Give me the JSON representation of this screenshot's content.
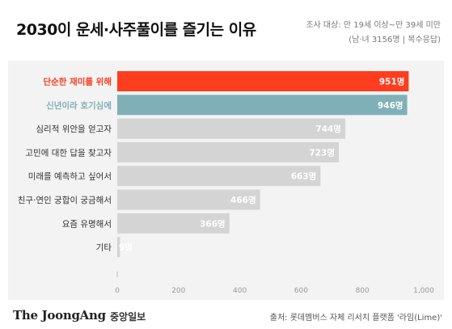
{
  "header": {
    "title": "2030이 운세·사주풀이를 즐기는 이유",
    "note_line1": "조사 대상: 만 19세 이상~만 39세 미만",
    "note_line2": "(남·녀 3156명 | 복수응답)"
  },
  "footer": {
    "logo_en": "The JoongAng",
    "logo_kr": "중앙일보",
    "source": "출처: 롯데멤버스 자체 리서치 플랫폼 '라임(Lime)'"
  },
  "colors": {
    "highlight1": "#ff3d1f",
    "highlight2": "#7fb0b8",
    "default_bar": "#d4d4d4",
    "panel_bg": "#f3f3f3"
  },
  "chart_data": {
    "type": "bar",
    "orientation": "horizontal",
    "categories": [
      "단순한 재미를 위해",
      "신년이라 호기심에",
      "심리적 위안을 얻고자",
      "고민에 대한 답을 찾고자",
      "미래를 예측하고 싶어서",
      "친구·연인 궁합이 궁금해서",
      "요즘 유명해서",
      "기타"
    ],
    "values": [
      951,
      946,
      744,
      723,
      663,
      466,
      366,
      9
    ],
    "value_labels": [
      "951명",
      "946명",
      "744명",
      "723명",
      "663명",
      "466명",
      "366명",
      "9명"
    ],
    "unit": "명",
    "xlim": [
      0,
      1000
    ],
    "ticks": [
      0,
      200,
      400,
      600,
      800,
      1000
    ],
    "tick_labels": [
      "0",
      "200",
      "400",
      "600",
      "800",
      "1,000"
    ],
    "highlight_index": [
      0,
      1
    ],
    "grid": false,
    "legend": "none"
  }
}
